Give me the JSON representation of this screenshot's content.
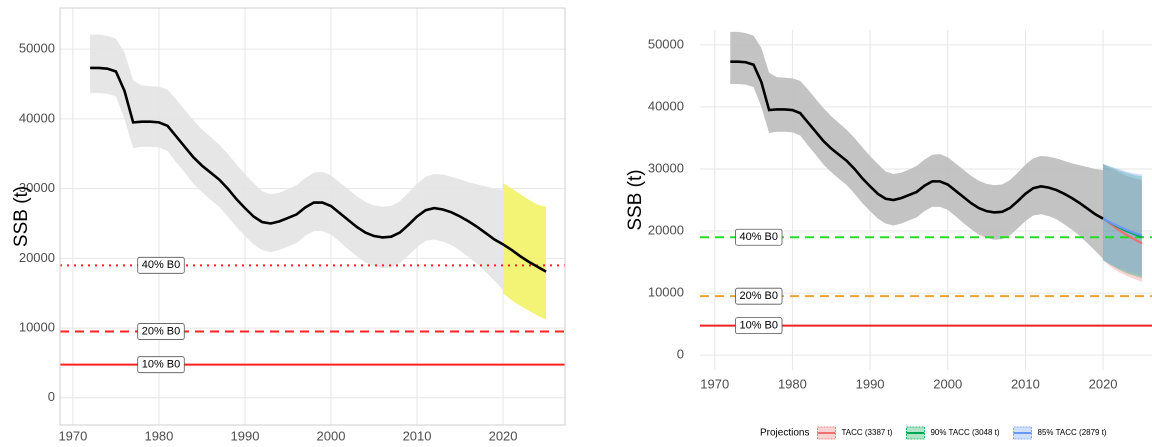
{
  "chart_data": [
    {
      "type": "line",
      "ylabel": "SSB (t)",
      "x": [
        1972,
        1973,
        1974,
        1975,
        1976,
        1977,
        1978,
        1979,
        1980,
        1981,
        1982,
        1983,
        1984,
        1985,
        1986,
        1987,
        1988,
        1989,
        1990,
        1991,
        1992,
        1993,
        1994,
        1995,
        1996,
        1997,
        1998,
        1999,
        2000,
        2001,
        2002,
        2003,
        2004,
        2005,
        2006,
        2007,
        2008,
        2009,
        2010,
        2011,
        2012,
        2013,
        2014,
        2015,
        2016,
        2017,
        2018,
        2019,
        2020,
        2021,
        2022,
        2023,
        2024,
        2025
      ],
      "series": [
        {
          "color": "#000000",
          "values": [
            47300,
            47300,
            47200,
            46800,
            44000,
            39500,
            39600,
            39600,
            39500,
            39000,
            37500,
            36000,
            34500,
            33300,
            32300,
            31300,
            30000,
            28500,
            27200,
            26000,
            25200,
            25000,
            25300,
            25800,
            26300,
            27300,
            28000,
            28000,
            27500,
            26500,
            25500,
            24500,
            23700,
            23200,
            23000,
            23100,
            23700,
            24800,
            26000,
            26900,
            27200,
            27000,
            26600,
            26000,
            25300,
            24500,
            23600,
            22700,
            22000,
            21200,
            20300,
            19500,
            18800,
            18100
          ]
        }
      ],
      "bands": [
        {
          "color": "#e3e3e3",
          "upper": [
            52100,
            52100,
            51900,
            51500,
            49500,
            45500,
            44800,
            44700,
            44600,
            44200,
            42800,
            41300,
            39800,
            38500,
            37400,
            36300,
            35000,
            33500,
            32100,
            30800,
            29600,
            29200,
            29400,
            29900,
            30500,
            31500,
            32300,
            32400,
            31900,
            30900,
            29900,
            28900,
            28100,
            27600,
            27400,
            27500,
            28200,
            29400,
            30700,
            31700,
            32100,
            32000,
            31700,
            31300,
            30900,
            30600,
            30300,
            30000,
            29800,
            null,
            null,
            null,
            null,
            null
          ],
          "lower": [
            43700,
            43700,
            43600,
            43200,
            40000,
            35800,
            36000,
            36000,
            35900,
            35400,
            33800,
            32300,
            30700,
            29500,
            28400,
            27400,
            26000,
            24500,
            23200,
            22000,
            21200,
            20900,
            21200,
            21700,
            22200,
            23200,
            23900,
            23900,
            23400,
            22400,
            21300,
            20300,
            19400,
            18900,
            18600,
            18700,
            19300,
            20400,
            21600,
            22500,
            22700,
            22400,
            21900,
            21100,
            20200,
            19200,
            18000,
            16800,
            15500,
            null,
            null,
            null,
            null,
            null
          ]
        },
        {
          "color": "#f2f266",
          "x": [
            2020,
            2021,
            2022,
            2023,
            2024,
            2025
          ],
          "upper": [
            30800,
            30000,
            29200,
            28400,
            27700,
            27400
          ],
          "lower": [
            15000,
            14000,
            13200,
            12500,
            11800,
            11200
          ]
        }
      ],
      "hlines": [
        {
          "value": 19000,
          "label": "40% B0",
          "color": "#ff2020",
          "style": "dotted"
        },
        {
          "value": 9500,
          "label": "20% B0",
          "color": "#ff2020",
          "style": "dashed"
        },
        {
          "value": 4750,
          "label": "10% B0",
          "color": "#ff2020",
          "style": "solid"
        }
      ],
      "xlim": [
        1968.5,
        2027.2
      ],
      "ylim": [
        -3900,
        55900
      ],
      "xticks": [
        1970,
        1980,
        1990,
        2000,
        2010,
        2020
      ],
      "yticks": [
        0,
        10000,
        20000,
        30000,
        40000,
        50000
      ],
      "grid": true
    },
    {
      "type": "line",
      "ylabel": "SSB (t)",
      "x": [
        1972,
        1973,
        1974,
        1975,
        1976,
        1977,
        1978,
        1979,
        1980,
        1981,
        1982,
        1983,
        1984,
        1985,
        1986,
        1987,
        1988,
        1989,
        1990,
        1991,
        1992,
        1993,
        1994,
        1995,
        1996,
        1997,
        1998,
        1999,
        2000,
        2001,
        2002,
        2003,
        2004,
        2005,
        2006,
        2007,
        2008,
        2009,
        2010,
        2011,
        2012,
        2013,
        2014,
        2015,
        2016,
        2017,
        2018,
        2019,
        2020
      ],
      "series": [
        {
          "color": "#000000",
          "values": [
            47300,
            47300,
            47200,
            46800,
            44000,
            39500,
            39600,
            39600,
            39500,
            39000,
            37500,
            36000,
            34500,
            33300,
            32300,
            31300,
            30000,
            28500,
            27200,
            26000,
            25200,
            25000,
            25300,
            25800,
            26300,
            27300,
            28000,
            28000,
            27500,
            26500,
            25500,
            24500,
            23700,
            23200,
            23000,
            23100,
            23700,
            24800,
            26000,
            26900,
            27200,
            27000,
            26600,
            26000,
            25300,
            24500,
            23600,
            22700,
            22000
          ]
        },
        {
          "name": "TACC (3387 t)",
          "color": "#f07070",
          "x": [
            2020,
            2021,
            2022,
            2023,
            2024,
            2025
          ],
          "values": [
            22000,
            21100,
            20200,
            19400,
            18700,
            18000
          ],
          "upper": [
            30800,
            30100,
            29500,
            28900,
            28500,
            28200
          ],
          "lower": [
            15300,
            14200,
            13400,
            12800,
            12300,
            11800
          ]
        },
        {
          "name": "90% TACC (3048 t)",
          "color": "#00a651",
          "x": [
            2020,
            2021,
            2022,
            2023,
            2024,
            2025
          ],
          "values": [
            22000,
            21300,
            20600,
            20000,
            19500,
            19000
          ],
          "upper": [
            30800,
            30300,
            29800,
            29400,
            29000,
            28800
          ],
          "lower": [
            15300,
            14500,
            13800,
            13200,
            12800,
            12400
          ]
        },
        {
          "name": "85% TACC (2879 t)",
          "color": "#6699ff",
          "x": [
            2020,
            2021,
            2022,
            2023,
            2024,
            2025
          ],
          "values": [
            22000,
            21350,
            20750,
            20200,
            19700,
            19300
          ],
          "upper": [
            30800,
            30400,
            30000,
            29600,
            29300,
            29100
          ],
          "lower": [
            15300,
            14600,
            14000,
            13500,
            13100,
            12700
          ]
        }
      ],
      "bands": [
        {
          "color": "#bdbdbd",
          "upper": [
            52100,
            52100,
            51900,
            51500,
            49500,
            45500,
            44800,
            44700,
            44600,
            44200,
            42800,
            41300,
            39800,
            38500,
            37400,
            36300,
            35000,
            33500,
            32100,
            30800,
            29600,
            29200,
            29400,
            29900,
            30500,
            31500,
            32300,
            32400,
            31900,
            30900,
            29900,
            28900,
            28100,
            27600,
            27400,
            27500,
            28200,
            29400,
            30700,
            31700,
            32100,
            32000,
            31700,
            31300,
            30900,
            30600,
            30300,
            30000,
            29800
          ],
          "lower": [
            43700,
            43700,
            43600,
            43200,
            40000,
            35800,
            36000,
            36000,
            35900,
            35400,
            33800,
            32300,
            30700,
            29500,
            28400,
            27400,
            26000,
            24500,
            23200,
            22000,
            21200,
            20900,
            21200,
            21700,
            22200,
            23200,
            23900,
            23900,
            23400,
            22400,
            21300,
            20300,
            19400,
            18900,
            18600,
            18700,
            19300,
            20400,
            21600,
            22500,
            22700,
            22400,
            21900,
            21100,
            20200,
            19200,
            18000,
            16800,
            15500
          ]
        }
      ],
      "hlines": [
        {
          "value": 19000,
          "label": "40% B0",
          "color": "#22dd22",
          "style": "dashed"
        },
        {
          "value": 9500,
          "label": "20% B0",
          "color": "#f0a030",
          "style": "dashed"
        },
        {
          "value": 4750,
          "label": "10% B0",
          "color": "#ee2222",
          "style": "solid"
        }
      ],
      "legend_title": "Projections",
      "legend": "bottom",
      "xlim": [
        1968.1,
        2026.3
      ],
      "ylim": [
        -2400,
        52400
      ],
      "xticks": [
        1970,
        1980,
        1990,
        2000,
        2010,
        2020
      ],
      "yticks": [
        0,
        10000,
        20000,
        30000,
        40000,
        50000
      ],
      "grid": true
    }
  ]
}
